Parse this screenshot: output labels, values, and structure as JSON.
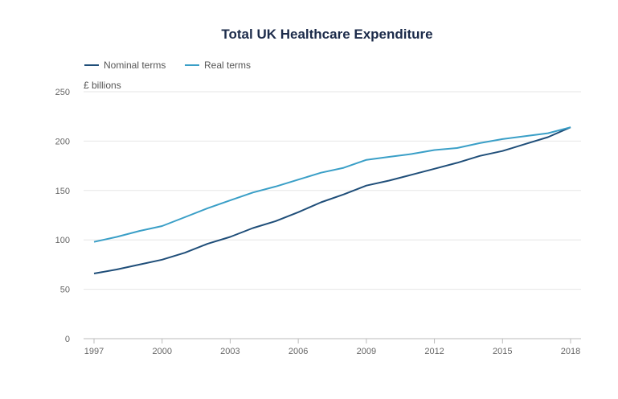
{
  "chart_data": {
    "type": "line",
    "title": "Total UK Healthcare Expenditure",
    "ylabel": "£ billions",
    "xlabel": "",
    "xlim": [
      1997,
      2018
    ],
    "ylim": [
      0,
      250
    ],
    "x_ticks": [
      "1997",
      "2000",
      "2003",
      "2006",
      "2009",
      "2012",
      "2015",
      "2018"
    ],
    "y_ticks": [
      "0",
      "50",
      "100",
      "150",
      "200",
      "250"
    ],
    "grid": true,
    "legend": "top-left",
    "x": [
      1997,
      1998,
      1999,
      2000,
      2001,
      2002,
      2003,
      2004,
      2005,
      2006,
      2007,
      2008,
      2009,
      2010,
      2011,
      2012,
      2013,
      2014,
      2015,
      2016,
      2017,
      2018
    ],
    "series": [
      {
        "name": "Nominal terms",
        "color": "#1f4e79",
        "values": [
          66,
          70,
          75,
          80,
          87,
          96,
          103,
          112,
          119,
          128,
          138,
          146,
          155,
          160,
          166,
          172,
          178,
          185,
          190,
          197,
          204,
          214
        ]
      },
      {
        "name": "Real terms",
        "color": "#3a9fc7",
        "values": [
          98,
          103,
          109,
          114,
          123,
          132,
          140,
          148,
          154,
          161,
          168,
          173,
          181,
          184,
          187,
          191,
          193,
          198,
          202,
          205,
          208,
          214
        ]
      }
    ]
  }
}
